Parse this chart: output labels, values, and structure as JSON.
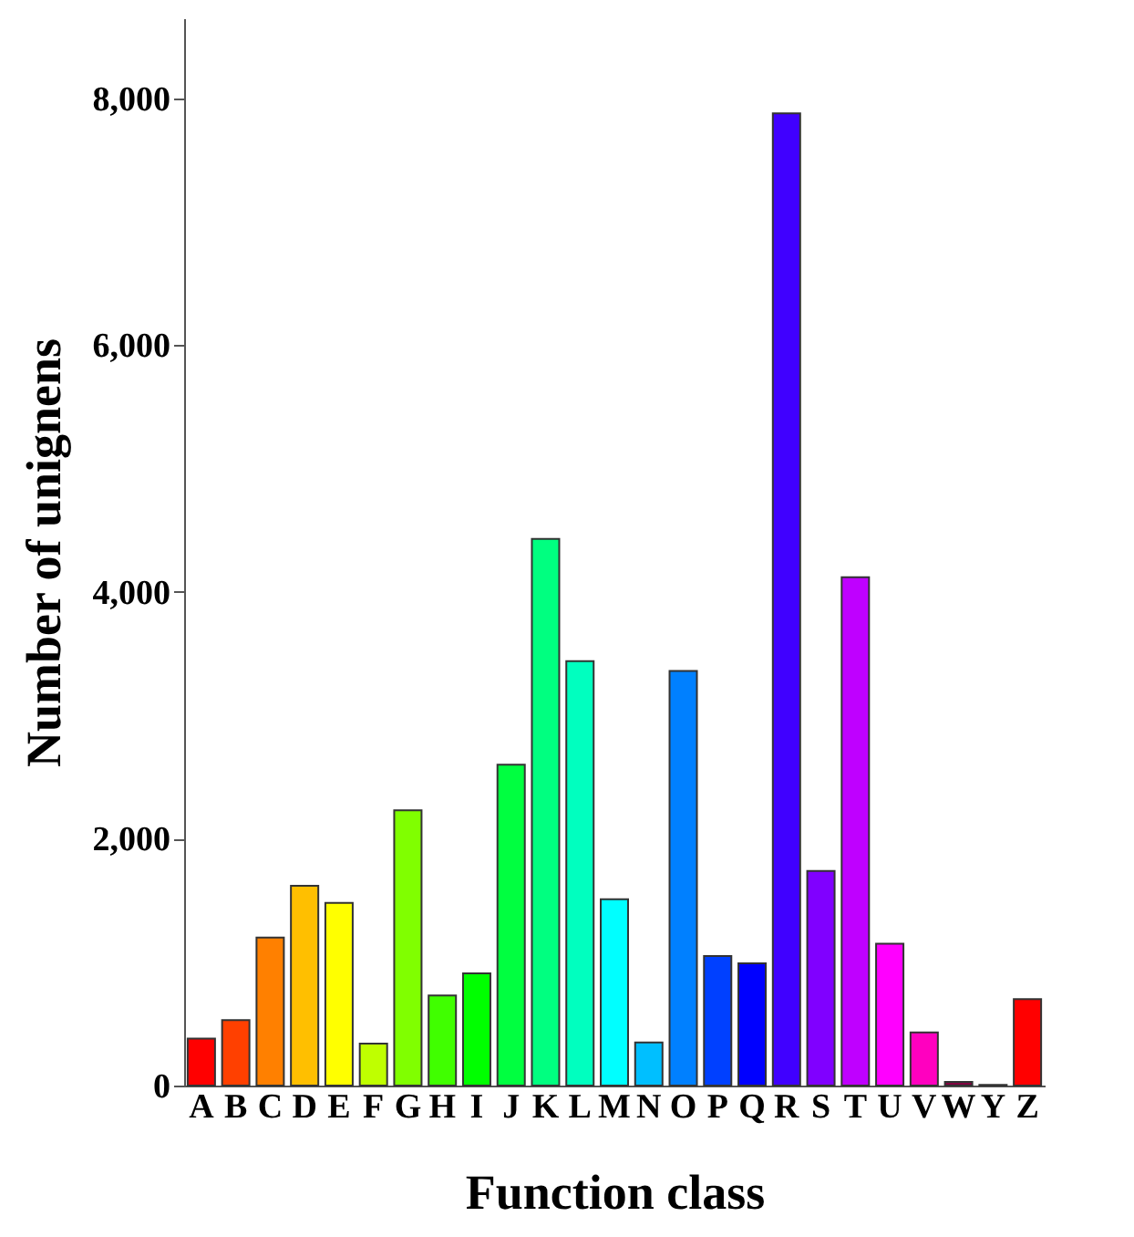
{
  "chart_data": {
    "type": "bar",
    "xlabel": "Function class",
    "ylabel": "Number of unignens",
    "categories": [
      "A",
      "B",
      "C",
      "D",
      "E",
      "F",
      "G",
      "H",
      "I",
      "J",
      "K",
      "L",
      "M",
      "N",
      "O",
      "P",
      "Q",
      "R",
      "S",
      "T",
      "U",
      "V",
      "W",
      "Y",
      "Z"
    ],
    "values": [
      380,
      530,
      1200,
      1620,
      1480,
      340,
      2230,
      730,
      910,
      2600,
      4430,
      3440,
      1510,
      350,
      3360,
      1050,
      990,
      7880,
      1740,
      4120,
      1150,
      430,
      30,
      5,
      700
    ],
    "colors": [
      "#ff0000",
      "#ff4000",
      "#ff8000",
      "#ffbf00",
      "#ffff00",
      "#bfff00",
      "#80ff00",
      "#40ff00",
      "#00ff00",
      "#00ff40",
      "#00ff80",
      "#00ffbf",
      "#00ffff",
      "#00bfff",
      "#0080ff",
      "#0040ff",
      "#0000ff",
      "#4000ff",
      "#8000ff",
      "#bf00ff",
      "#ff00ff",
      "#ff00bf",
      "#800040",
      "#ff0080",
      "#ff0000"
    ],
    "ylim": [
      0,
      8650
    ],
    "yticks": [
      {
        "value": 0,
        "label": "0"
      },
      {
        "value": 2000,
        "label": "2,000"
      },
      {
        "value": 4000,
        "label": "4,000"
      },
      {
        "value": 6000,
        "label": "6,000"
      },
      {
        "value": 8000,
        "label": "8,000"
      }
    ],
    "grid": false
  }
}
